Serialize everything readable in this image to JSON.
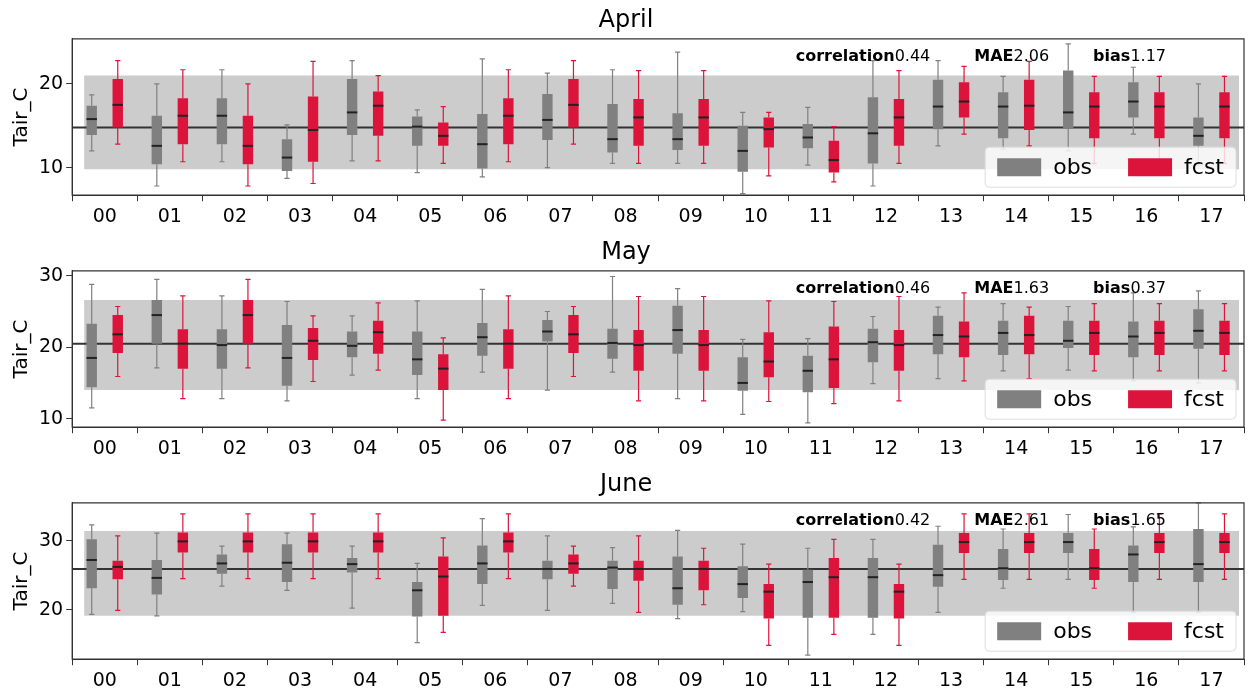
{
  "chart_data": [
    {
      "type": "box",
      "title": "April",
      "ylabel": "Tair_C",
      "categories": [
        "00",
        "01",
        "02",
        "03",
        "04",
        "05",
        "06",
        "07",
        "08",
        "09",
        "10",
        "11",
        "12",
        "13",
        "14",
        "15",
        "16",
        "17"
      ],
      "ylim": [
        6.7,
        25.4
      ],
      "yticks": [
        10,
        20
      ],
      "grid": false,
      "legend": "bottom right",
      "series": [
        {
          "name": "obs",
          "color": "#808080",
          "boxes": [
            {
              "low": 12.0,
              "q1": 13.9,
              "median": 15.8,
              "q3": 17.4,
              "high": 18.7
            },
            {
              "low": 7.8,
              "q1": 10.4,
              "median": 12.6,
              "q3": 16.2,
              "high": 20.0
            },
            {
              "low": 10.7,
              "q1": 12.8,
              "median": 16.2,
              "q3": 18.3,
              "high": 21.7
            },
            {
              "low": 8.7,
              "q1": 9.6,
              "median": 11.2,
              "q3": 13.4,
              "high": 15.1
            },
            {
              "low": 10.8,
              "q1": 13.9,
              "median": 16.6,
              "q3": 20.6,
              "high": 22.8
            },
            {
              "low": 9.4,
              "q1": 12.6,
              "median": 14.9,
              "q3": 16.1,
              "high": 16.9
            },
            {
              "low": 8.9,
              "q1": 9.9,
              "median": 12.8,
              "q3": 16.4,
              "high": 23.0
            },
            {
              "low": 10.0,
              "q1": 13.3,
              "median": 15.7,
              "q3": 18.8,
              "high": 21.3
            },
            {
              "low": 10.5,
              "q1": 11.8,
              "median": 13.4,
              "q3": 17.6,
              "high": 21.7
            },
            {
              "low": 10.5,
              "q1": 12.1,
              "median": 13.4,
              "q3": 16.5,
              "high": 23.8
            },
            {
              "low": 6.9,
              "q1": 9.5,
              "median": 12.0,
              "q3": 15.0,
              "high": 16.6
            },
            {
              "low": 10.3,
              "q1": 12.3,
              "median": 13.6,
              "q3": 15.2,
              "high": 17.2
            },
            {
              "low": 7.8,
              "q1": 10.5,
              "median": 14.1,
              "q3": 18.4,
              "high": 22.8
            },
            {
              "low": 12.6,
              "q1": 14.6,
              "median": 17.3,
              "q3": 20.5,
              "high": 22.8
            },
            {
              "low": 12.2,
              "q1": 13.5,
              "median": 17.3,
              "q3": 19.0,
              "high": 20.9
            },
            {
              "low": 12.0,
              "q1": 14.7,
              "median": 16.6,
              "q3": 21.6,
              "high": 24.8
            },
            {
              "low": 14.0,
              "q1": 16.0,
              "median": 17.9,
              "q3": 20.2,
              "high": 22.0
            },
            {
              "low": 10.3,
              "q1": 12.6,
              "median": 13.8,
              "q3": 16.0,
              "high": 20.0
            }
          ]
        },
        {
          "name": "fcst",
          "color": "#dc143c",
          "boxes": [
            {
              "low": 12.8,
              "q1": 14.8,
              "median": 17.5,
              "q3": 20.6,
              "high": 22.8
            },
            {
              "low": 10.7,
              "q1": 12.8,
              "median": 16.2,
              "q3": 18.3,
              "high": 21.7
            },
            {
              "low": 7.8,
              "q1": 10.4,
              "median": 12.6,
              "q3": 16.2,
              "high": 20.0
            },
            {
              "low": 8.1,
              "q1": 10.7,
              "median": 14.5,
              "q3": 18.5,
              "high": 22.7
            },
            {
              "low": 10.8,
              "q1": 13.8,
              "median": 17.4,
              "q3": 19.1,
              "high": 21.0
            },
            {
              "low": 10.5,
              "q1": 12.6,
              "median": 13.8,
              "q3": 15.4,
              "high": 17.3
            },
            {
              "low": 10.7,
              "q1": 12.8,
              "median": 16.2,
              "q3": 18.3,
              "high": 21.7
            },
            {
              "low": 12.8,
              "q1": 14.8,
              "median": 17.5,
              "q3": 20.6,
              "high": 22.8
            },
            {
              "low": 10.5,
              "q1": 12.6,
              "median": 16.0,
              "q3": 18.2,
              "high": 21.6
            },
            {
              "low": 10.5,
              "q1": 12.6,
              "median": 16.0,
              "q3": 18.2,
              "high": 21.6
            },
            {
              "low": 9.0,
              "q1": 12.4,
              "median": 14.6,
              "q3": 16.0,
              "high": 16.6
            },
            {
              "low": 8.3,
              "q1": 9.4,
              "median": 10.9,
              "q3": 13.2,
              "high": 14.9
            },
            {
              "low": 10.5,
              "q1": 12.6,
              "median": 16.0,
              "q3": 18.2,
              "high": 21.6
            },
            {
              "low": 14.0,
              "q1": 16.0,
              "median": 17.9,
              "q3": 20.2,
              "high": 22.1
            },
            {
              "low": 12.6,
              "q1": 14.5,
              "median": 17.4,
              "q3": 20.5,
              "high": 22.7
            },
            {
              "low": 10.5,
              "q1": 13.5,
              "median": 17.3,
              "q3": 19.0,
              "high": 20.9
            },
            {
              "low": 10.5,
              "q1": 13.5,
              "median": 17.3,
              "q3": 19.0,
              "high": 20.9
            },
            {
              "low": 10.5,
              "q1": 13.5,
              "median": 17.3,
              "q3": 19.0,
              "high": 20.9
            }
          ]
        }
      ],
      "ref_lines": [
        {
          "axis": "y",
          "value": 14.8,
          "color": "#333333"
        }
      ],
      "bands": [
        {
          "axis": "y",
          "from": 9.8,
          "to": 21.0,
          "color": "#cccccc"
        }
      ],
      "annotations": [
        "correlation0.44",
        "MAE2.06",
        "bias1.17"
      ]
    },
    {
      "type": "box",
      "title": "May",
      "ylabel": "Tair_C",
      "categories": [
        "00",
        "01",
        "02",
        "03",
        "04",
        "05",
        "06",
        "07",
        "08",
        "09",
        "10",
        "11",
        "12",
        "13",
        "14",
        "15",
        "16",
        "17"
      ],
      "ylim": [
        8.8,
        30.7
      ],
      "yticks": [
        10,
        20,
        30
      ],
      "grid": false,
      "legend": "bottom right",
      "series": [
        {
          "name": "obs",
          "color": "#808080",
          "boxes": [
            {
              "low": 11.5,
              "q1": 14.4,
              "median": 18.5,
              "q3": 23.3,
              "high": 28.8
            },
            {
              "low": 17.1,
              "q1": 20.5,
              "median": 24.5,
              "q3": 26.6,
              "high": 29.5
            },
            {
              "low": 12.8,
              "q1": 17.0,
              "median": 20.3,
              "q3": 22.5,
              "high": 27.2
            },
            {
              "low": 12.5,
              "q1": 14.6,
              "median": 18.5,
              "q3": 23.1,
              "high": 26.4
            },
            {
              "low": 16.1,
              "q1": 18.6,
              "median": 20.2,
              "q3": 22.2,
              "high": 24.4
            },
            {
              "low": 12.8,
              "q1": 16.1,
              "median": 18.3,
              "q3": 22.2,
              "high": 26.5
            },
            {
              "low": 16.5,
              "q1": 18.8,
              "median": 21.4,
              "q3": 23.4,
              "high": 28.1
            },
            {
              "low": 14.0,
              "q1": 20.8,
              "median": 22.2,
              "q3": 23.8,
              "high": 25.0
            },
            {
              "low": 16.5,
              "q1": 18.4,
              "median": 20.6,
              "q3": 22.6,
              "high": 29.9
            },
            {
              "low": 12.8,
              "q1": 19.1,
              "median": 22.4,
              "q3": 25.8,
              "high": 28.2
            },
            {
              "low": 10.6,
              "q1": 13.9,
              "median": 15.0,
              "q3": 18.6,
              "high": 21.1
            },
            {
              "low": 9.4,
              "q1": 13.7,
              "median": 16.7,
              "q3": 18.8,
              "high": 21.2
            },
            {
              "low": 14.9,
              "q1": 17.9,
              "median": 20.7,
              "q3": 22.6,
              "high": 24.3
            },
            {
              "low": 15.6,
              "q1": 19.0,
              "median": 21.7,
              "q3": 24.4,
              "high": 25.6
            },
            {
              "low": 16.7,
              "q1": 18.9,
              "median": 22.0,
              "q3": 23.7,
              "high": 26.1
            },
            {
              "low": 16.8,
              "q1": 19.9,
              "median": 20.9,
              "q3": 23.7,
              "high": 25.7
            },
            {
              "low": 15.3,
              "q1": 18.6,
              "median": 21.5,
              "q3": 23.6,
              "high": 27.6
            },
            {
              "low": 15.0,
              "q1": 19.8,
              "median": 22.3,
              "q3": 25.3,
              "high": 27.9
            }
          ]
        },
        {
          "name": "fcst",
          "color": "#dc143c",
          "boxes": [
            {
              "low": 15.9,
              "q1": 19.2,
              "median": 21.8,
              "q3": 24.5,
              "high": 25.7
            },
            {
              "low": 12.8,
              "q1": 17.0,
              "median": 20.5,
              "q3": 22.5,
              "high": 27.2
            },
            {
              "low": 17.1,
              "q1": 20.5,
              "median": 24.5,
              "q3": 26.6,
              "high": 29.5
            },
            {
              "low": 15.2,
              "q1": 18.2,
              "median": 20.9,
              "q3": 22.7,
              "high": 24.4
            },
            {
              "low": 16.8,
              "q1": 19.1,
              "median": 22.1,
              "q3": 23.7,
              "high": 26.2
            },
            {
              "low": 9.8,
              "q1": 14.0,
              "median": 17.0,
              "q3": 19.0,
              "high": 21.3
            },
            {
              "low": 12.8,
              "q1": 17.0,
              "median": 20.5,
              "q3": 22.5,
              "high": 27.2
            },
            {
              "low": 15.9,
              "q1": 19.2,
              "median": 21.8,
              "q3": 24.5,
              "high": 25.7
            },
            {
              "low": 12.5,
              "q1": 16.7,
              "median": 20.3,
              "q3": 22.4,
              "high": 27.1
            },
            {
              "low": 12.5,
              "q1": 16.7,
              "median": 20.3,
              "q3": 22.4,
              "high": 27.1
            },
            {
              "low": 12.4,
              "q1": 15.8,
              "median": 18.0,
              "q3": 22.1,
              "high": 26.5
            },
            {
              "low": 12.1,
              "q1": 14.3,
              "median": 18.3,
              "q3": 22.9,
              "high": 26.4
            },
            {
              "low": 12.5,
              "q1": 16.7,
              "median": 20.3,
              "q3": 22.4,
              "high": 27.1
            },
            {
              "low": 15.3,
              "q1": 18.6,
              "median": 21.5,
              "q3": 23.6,
              "high": 27.6
            },
            {
              "low": 15.6,
              "q1": 19.0,
              "median": 21.7,
              "q3": 24.4,
              "high": 25.6
            },
            {
              "low": 16.7,
              "q1": 18.9,
              "median": 22.0,
              "q3": 23.7,
              "high": 26.1
            },
            {
              "low": 16.7,
              "q1": 18.9,
              "median": 22.0,
              "q3": 23.7,
              "high": 26.1
            },
            {
              "low": 16.7,
              "q1": 18.9,
              "median": 22.0,
              "q3": 23.7,
              "high": 26.1
            }
          ]
        }
      ],
      "ref_lines": [
        {
          "axis": "y",
          "value": 20.5,
          "color": "#333333"
        }
      ],
      "bands": [
        {
          "axis": "y",
          "from": 14.0,
          "to": 26.6,
          "color": "#cccccc"
        }
      ],
      "annotations": [
        "correlation0.46",
        "MAE1.63",
        "bias0.37"
      ]
    },
    {
      "type": "box",
      "title": "June",
      "ylabel": "Tair_C",
      "categories": [
        "00",
        "01",
        "02",
        "03",
        "04",
        "05",
        "06",
        "07",
        "08",
        "09",
        "10",
        "11",
        "12",
        "13",
        "14",
        "15",
        "16",
        "17"
      ],
      "ylim": [
        12.8,
        35.5
      ],
      "yticks": [
        20,
        30
      ],
      "grid": false,
      "legend": "bottom right",
      "series": [
        {
          "name": "obs",
          "color": "#808080",
          "boxes": [
            {
              "low": 19.3,
              "q1": 23.1,
              "median": 27.2,
              "q3": 30.2,
              "high": 32.3
            },
            {
              "low": 19.1,
              "q1": 22.2,
              "median": 24.6,
              "q3": 27.2,
              "high": 31.1
            },
            {
              "low": 23.4,
              "q1": 25.2,
              "median": 26.7,
              "q3": 28.0,
              "high": 29.2
            },
            {
              "low": 22.8,
              "q1": 24.0,
              "median": 26.8,
              "q3": 29.5,
              "high": 31.1
            },
            {
              "low": 20.2,
              "q1": 25.4,
              "median": 26.6,
              "q3": 27.5,
              "high": 29.2
            },
            {
              "low": 15.2,
              "q1": 19.0,
              "median": 22.8,
              "q3": 24.0,
              "high": 26.7
            },
            {
              "low": 20.6,
              "q1": 23.7,
              "median": 26.7,
              "q3": 29.3,
              "high": 33.2
            },
            {
              "low": 19.9,
              "q1": 24.4,
              "median": 25.9,
              "q3": 27.1,
              "high": 30.7
            },
            {
              "low": 20.9,
              "q1": 23.0,
              "median": 26.1,
              "q3": 27.1,
              "high": 29.0
            },
            {
              "low": 18.7,
              "q1": 20.7,
              "median": 23.1,
              "q3": 27.7,
              "high": 31.5
            },
            {
              "low": 19.7,
              "q1": 21.7,
              "median": 23.7,
              "q3": 26.3,
              "high": 29.5
            },
            {
              "low": 13.4,
              "q1": 18.8,
              "median": 24.0,
              "q3": 25.8,
              "high": 28.9
            },
            {
              "low": 16.4,
              "q1": 18.8,
              "median": 24.7,
              "q3": 27.5,
              "high": 30.2
            },
            {
              "low": 19.6,
              "q1": 23.3,
              "median": 25.0,
              "q3": 29.4,
              "high": 32.1
            },
            {
              "low": 23.1,
              "q1": 24.3,
              "median": 26.0,
              "q3": 28.8,
              "high": 31.7
            },
            {
              "low": 24.4,
              "q1": 28.2,
              "median": 29.8,
              "q3": 31.1,
              "high": 33.8
            },
            {
              "low": 19.6,
              "q1": 24.0,
              "median": 28.0,
              "q3": 29.3,
              "high": 32.0
            },
            {
              "low": 19.6,
              "q1": 24.0,
              "median": 26.6,
              "q3": 31.7,
              "high": 35.5
            }
          ]
        },
        {
          "name": "fcst",
          "color": "#dc143c",
          "boxes": [
            {
              "low": 19.9,
              "q1": 24.4,
              "median": 26.2,
              "q3": 27.1,
              "high": 30.7
            },
            {
              "low": 24.5,
              "q1": 28.3,
              "median": 29.9,
              "q3": 31.2,
              "high": 33.9
            },
            {
              "low": 24.5,
              "q1": 28.3,
              "median": 29.9,
              "q3": 31.2,
              "high": 33.9
            },
            {
              "low": 24.5,
              "q1": 28.3,
              "median": 29.9,
              "q3": 31.2,
              "high": 33.9
            },
            {
              "low": 24.5,
              "q1": 28.3,
              "median": 29.9,
              "q3": 31.2,
              "high": 33.9
            },
            {
              "low": 16.7,
              "q1": 19.1,
              "median": 24.8,
              "q3": 27.7,
              "high": 30.4
            },
            {
              "low": 24.5,
              "q1": 28.3,
              "median": 29.9,
              "q3": 31.2,
              "high": 33.9
            },
            {
              "low": 23.4,
              "q1": 25.2,
              "median": 26.7,
              "q3": 28.0,
              "high": 29.2
            },
            {
              "low": 19.6,
              "q1": 24.2,
              "median": 25.9,
              "q3": 27.1,
              "high": 30.7
            },
            {
              "low": 20.7,
              "q1": 22.8,
              "median": 25.9,
              "q3": 27.1,
              "high": 28.9
            },
            {
              "low": 14.8,
              "q1": 18.7,
              "median": 22.6,
              "q3": 23.7,
              "high": 26.6
            },
            {
              "low": 16.4,
              "q1": 18.8,
              "median": 24.7,
              "q3": 27.5,
              "high": 30.2
            },
            {
              "low": 14.8,
              "q1": 18.7,
              "median": 22.6,
              "q3": 23.7,
              "high": 26.6
            },
            {
              "low": 24.4,
              "q1": 28.2,
              "median": 29.8,
              "q3": 31.1,
              "high": 33.9
            },
            {
              "low": 24.4,
              "q1": 28.2,
              "median": 29.8,
              "q3": 31.1,
              "high": 33.9
            },
            {
              "low": 23.1,
              "q1": 24.3,
              "median": 26.0,
              "q3": 28.8,
              "high": 31.7
            },
            {
              "low": 24.4,
              "q1": 28.2,
              "median": 29.8,
              "q3": 31.1,
              "high": 33.9
            },
            {
              "low": 24.4,
              "q1": 28.2,
              "median": 29.8,
              "q3": 31.1,
              "high": 33.9
            }
          ]
        }
      ],
      "ref_lines": [
        {
          "axis": "y",
          "value": 25.9,
          "color": "#333333"
        }
      ],
      "bands": [
        {
          "axis": "y",
          "from": 19.1,
          "to": 31.4,
          "color": "#cccccc"
        }
      ],
      "annotations": [
        "correlation0.42",
        "MAE2.61",
        "bias1.65"
      ]
    }
  ]
}
